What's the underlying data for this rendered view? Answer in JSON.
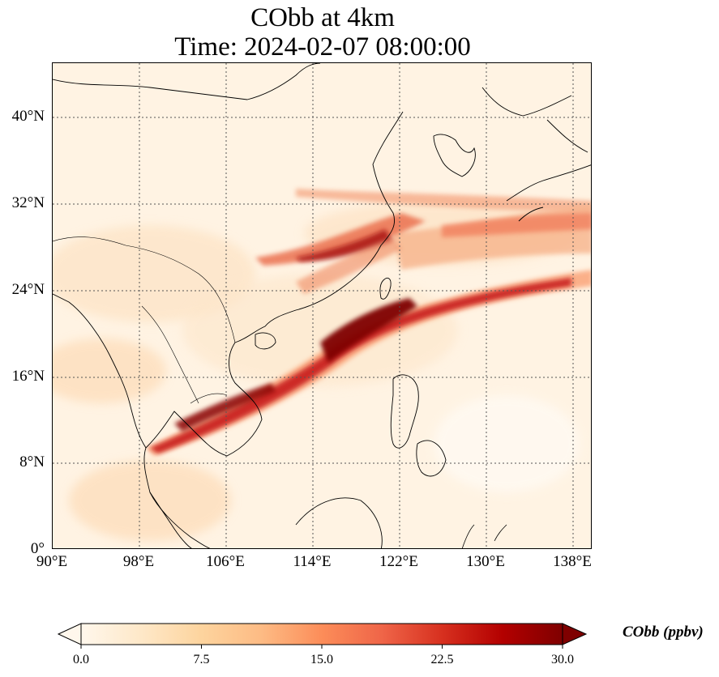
{
  "title": {
    "line1": "CObb at 4km",
    "line2": "Time: 2024-02-07 08:00:00"
  },
  "map": {
    "extent": {
      "lon": [
        90,
        139
      ],
      "lat": [
        0,
        44
      ]
    },
    "lat_ticks": [
      "40°N",
      "32°N",
      "24°N",
      "16°N",
      "8°N",
      "0°"
    ],
    "lon_ticks": [
      "90°E",
      "98°E",
      "106°E",
      "114°E",
      "122°E",
      "130°E",
      "138°E"
    ],
    "gridlines": true,
    "colormap": "OrRd"
  },
  "colorbar": {
    "label": "CObb (ppbv)",
    "ticks": [
      "0.0",
      "7.5",
      "15.0",
      "22.5",
      "30.0"
    ],
    "range": [
      0,
      30
    ],
    "extend": "both",
    "colors": [
      "#fff7ec",
      "#fee8c8",
      "#fdd49e",
      "#fdbb84",
      "#fc8d59",
      "#ef6548",
      "#d7301f",
      "#b30000",
      "#7f0000"
    ]
  }
}
